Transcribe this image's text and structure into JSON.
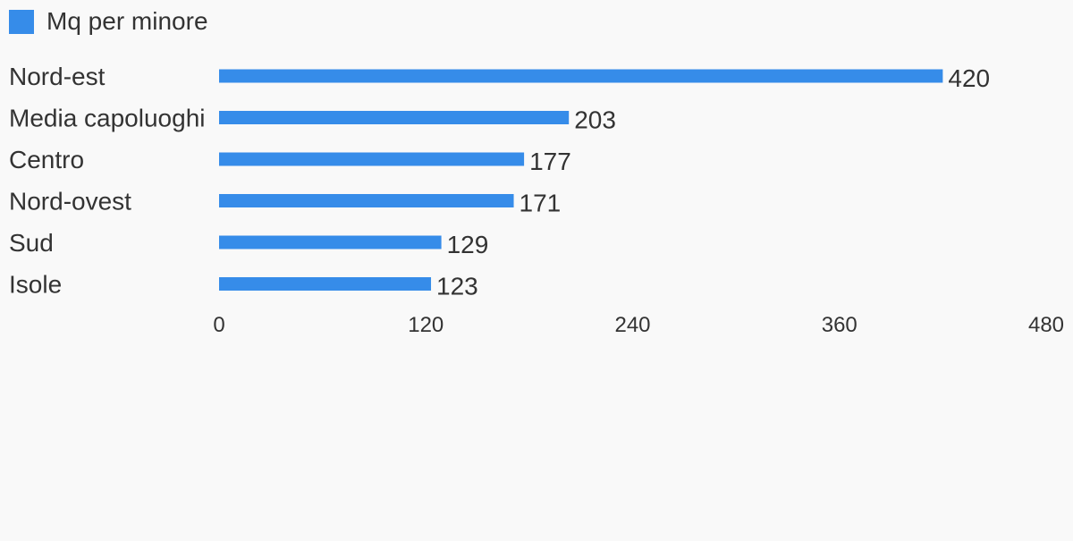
{
  "chart_data": {
    "type": "bar",
    "orientation": "horizontal",
    "categories": [
      "Nord-est",
      "Media capoluoghi",
      "Centro",
      "Nord-ovest",
      "Sud",
      "Isole"
    ],
    "series": [
      {
        "name": "Mq per minore",
        "values": [
          420,
          203,
          177,
          171,
          129,
          123
        ],
        "color": "#368ce9"
      }
    ],
    "xlim": [
      0,
      480
    ],
    "xticks": [
      "0",
      "120",
      "240",
      "360",
      "480"
    ],
    "grid": false,
    "legend": "top-left",
    "data_labels": true
  }
}
